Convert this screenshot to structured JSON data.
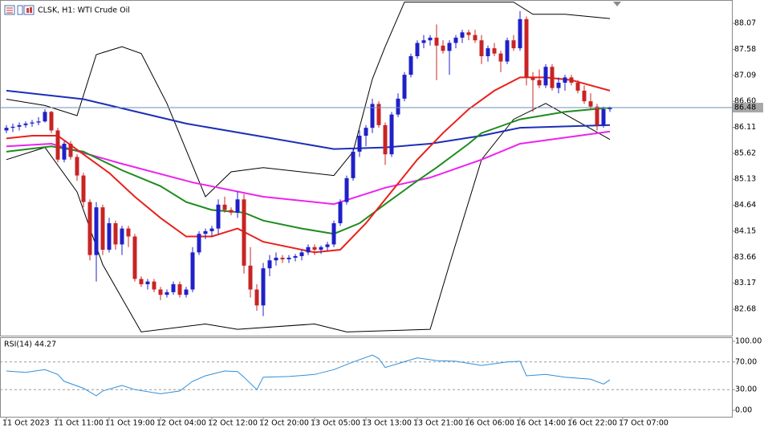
{
  "chart_data": {
    "type": "candlestick",
    "title": "CLSK, H1:  WTI Crude Oil",
    "xlim": [
      -1,
      113
    ],
    "xticks": [
      {
        "value": 0,
        "label": "11 Oct 2023"
      },
      {
        "value": 8,
        "label": "11 Oct 11:00"
      },
      {
        "value": 16,
        "label": "11 Oct 19:00"
      },
      {
        "value": 24,
        "label": "12 Oct 04:00"
      },
      {
        "value": 32,
        "label": "12 Oct 12:00"
      },
      {
        "value": 40,
        "label": "12 Oct 20:00"
      },
      {
        "value": 48,
        "label": "13 Oct 05:00"
      },
      {
        "value": 56,
        "label": "13 Oct 13:00"
      },
      {
        "value": 64,
        "label": "13 Oct 21:00"
      },
      {
        "value": 72,
        "label": "16 Oct 06:00"
      },
      {
        "value": 80,
        "label": "16 Oct 14:00"
      },
      {
        "value": 88,
        "label": "16 Oct 22:00"
      },
      {
        "value": 96,
        "label": "17 Oct 07:00"
      }
    ],
    "ylim": [
      82.18,
      88.51
    ],
    "yticks": [
      88.07,
      87.58,
      87.09,
      {
        "value": 86.6,
        "label": "86.60"
      },
      86.11,
      85.62,
      85.13,
      84.64,
      84.15,
      83.66,
      83.17,
      82.68
    ],
    "last_price": 86.48,
    "last_price_color": "#6f8fb4",
    "candles": {
      "up_color": "#2020c8",
      "down_color": "#c82424",
      "ohlc": [
        [
          86.05,
          86.15,
          86.0,
          86.1
        ],
        [
          86.1,
          86.18,
          86.02,
          86.12
        ],
        [
          86.12,
          86.2,
          86.05,
          86.15
        ],
        [
          86.15,
          86.22,
          86.1,
          86.18
        ],
        [
          86.18,
          86.25,
          86.12,
          86.2
        ],
        [
          86.2,
          86.3,
          86.15,
          86.22
        ],
        [
          86.22,
          86.45,
          86.2,
          86.4
        ],
        [
          86.4,
          86.42,
          86.0,
          86.05
        ],
        [
          86.05,
          86.1,
          85.45,
          85.5
        ],
        [
          85.5,
          85.85,
          85.45,
          85.8
        ],
        [
          85.8,
          85.85,
          85.5,
          85.55
        ],
        [
          85.55,
          85.6,
          85.1,
          85.2
        ],
        [
          85.2,
          85.25,
          84.6,
          84.7
        ],
        [
          84.7,
          84.75,
          83.6,
          83.7
        ],
        [
          83.7,
          84.7,
          83.2,
          84.6
        ],
        [
          84.6,
          84.65,
          83.7,
          83.8
        ],
        [
          83.8,
          84.4,
          83.75,
          84.3
        ],
        [
          84.3,
          84.35,
          83.8,
          83.9
        ],
        [
          83.9,
          84.25,
          83.7,
          84.2
        ],
        [
          84.2,
          84.25,
          83.85,
          84.05
        ],
        [
          84.05,
          84.1,
          83.2,
          83.25
        ],
        [
          83.25,
          83.3,
          83.1,
          83.15
        ],
        [
          83.15,
          83.25,
          83.05,
          83.2
        ],
        [
          83.2,
          83.25,
          83.0,
          83.05
        ],
        [
          83.05,
          83.1,
          82.85,
          82.95
        ],
        [
          82.95,
          83.05,
          82.9,
          83.0
        ],
        [
          83.0,
          83.2,
          82.95,
          83.15
        ],
        [
          83.15,
          83.2,
          82.9,
          82.95
        ],
        [
          82.95,
          83.1,
          82.9,
          83.05
        ],
        [
          83.05,
          83.85,
          83.0,
          83.75
        ],
        [
          83.75,
          84.15,
          83.7,
          84.1
        ],
        [
          84.1,
          84.2,
          84.0,
          84.15
        ],
        [
          84.15,
          84.25,
          84.05,
          84.2
        ],
        [
          84.2,
          84.75,
          84.1,
          84.65
        ],
        [
          84.65,
          84.8,
          84.5,
          84.55
        ],
        [
          84.55,
          84.6,
          84.45,
          84.5
        ],
        [
          84.5,
          84.9,
          84.4,
          84.75
        ],
        [
          84.75,
          84.85,
          83.35,
          83.5
        ],
        [
          83.5,
          83.85,
          82.9,
          83.05
        ],
        [
          83.05,
          83.15,
          82.65,
          82.75
        ],
        [
          82.75,
          83.55,
          82.55,
          83.45
        ],
        [
          83.45,
          83.7,
          83.3,
          83.6
        ],
        [
          83.6,
          83.75,
          83.5,
          83.65
        ],
        [
          83.65,
          83.7,
          83.55,
          83.62
        ],
        [
          83.62,
          83.7,
          83.55,
          83.65
        ],
        [
          83.65,
          83.72,
          83.58,
          83.68
        ],
        [
          83.68,
          83.8,
          83.6,
          83.75
        ],
        [
          83.75,
          83.9,
          83.7,
          83.85
        ],
        [
          83.85,
          83.9,
          83.7,
          83.8
        ],
        [
          83.8,
          83.88,
          83.72,
          83.85
        ],
        [
          83.85,
          83.95,
          83.78,
          83.9
        ],
        [
          83.9,
          84.35,
          83.85,
          84.3
        ],
        [
          84.3,
          84.75,
          84.25,
          84.7
        ],
        [
          84.7,
          85.2,
          84.65,
          85.15
        ],
        [
          85.15,
          85.7,
          85.1,
          85.65
        ],
        [
          85.65,
          86.05,
          85.55,
          85.95
        ],
        [
          85.95,
          86.15,
          85.75,
          86.1
        ],
        [
          86.1,
          86.65,
          86.0,
          86.55
        ],
        [
          86.55,
          86.6,
          86.1,
          86.15
        ],
        [
          86.15,
          86.2,
          85.4,
          85.6
        ],
        [
          85.6,
          86.4,
          85.55,
          86.35
        ],
        [
          86.35,
          86.75,
          86.3,
          86.65
        ],
        [
          86.65,
          87.15,
          86.6,
          87.1
        ],
        [
          87.1,
          87.5,
          87.05,
          87.45
        ],
        [
          87.45,
          87.75,
          87.4,
          87.7
        ],
        [
          87.7,
          87.85,
          87.6,
          87.75
        ],
        [
          87.75,
          87.85,
          87.65,
          87.8
        ],
        [
          87.8,
          88.05,
          87.0,
          87.65
        ],
        [
          87.65,
          87.75,
          87.5,
          87.55
        ],
        [
          87.55,
          87.75,
          87.1,
          87.7
        ],
        [
          87.7,
          87.85,
          87.6,
          87.8
        ],
        [
          87.8,
          87.95,
          87.7,
          87.9
        ],
        [
          87.9,
          87.95,
          87.75,
          87.85
        ],
        [
          87.85,
          87.95,
          87.7,
          87.75
        ],
        [
          87.75,
          87.85,
          87.3,
          87.45
        ],
        [
          87.45,
          87.65,
          87.35,
          87.6
        ],
        [
          87.6,
          87.7,
          87.45,
          87.5
        ],
        [
          87.5,
          87.55,
          87.15,
          87.35
        ],
        [
          87.35,
          87.8,
          87.3,
          87.75
        ],
        [
          87.75,
          87.85,
          87.55,
          87.6
        ],
        [
          87.6,
          88.3,
          87.55,
          88.15
        ],
        [
          88.15,
          88.2,
          86.9,
          87.05
        ],
        [
          87.05,
          87.15,
          86.4,
          87.0
        ],
        [
          87.0,
          87.2,
          86.85,
          86.9
        ],
        [
          86.9,
          87.3,
          86.85,
          87.25
        ],
        [
          87.25,
          87.3,
          86.8,
          86.85
        ],
        [
          86.85,
          87.05,
          86.75,
          86.95
        ],
        [
          86.95,
          87.1,
          86.8,
          87.05
        ],
        [
          87.05,
          87.1,
          86.9,
          86.95
        ],
        [
          86.95,
          87.0,
          86.75,
          86.8
        ],
        [
          86.8,
          86.9,
          86.55,
          86.6
        ],
        [
          86.6,
          86.75,
          86.45,
          86.5
        ],
        [
          86.5,
          86.55,
          86.05,
          86.15
        ],
        [
          86.15,
          86.5,
          86.1,
          86.45
        ],
        [
          86.45,
          86.5,
          86.4,
          86.48
        ]
      ]
    },
    "lines": [
      {
        "color": "#000000",
        "x": [
          0,
          6,
          11,
          14,
          18,
          21,
          25,
          31,
          35,
          40,
          51,
          54,
          57,
          59,
          62,
          79,
          82,
          87,
          94
        ],
        "values": [
          86.64,
          86.52,
          86.33,
          87.48,
          87.63,
          87.5,
          86.56,
          84.8,
          85.27,
          85.35,
          85.2,
          85.65,
          87.02,
          87.63,
          88.47,
          88.47,
          88.24,
          88.24,
          88.16
        ]
      },
      {
        "color": "#000000",
        "x": [
          0,
          6,
          11,
          15,
          21,
          31,
          36,
          48,
          53,
          66,
          69,
          74,
          79,
          84,
          94
        ],
        "values": [
          85.5,
          85.73,
          84.89,
          83.52,
          82.25,
          82.4,
          82.3,
          82.4,
          82.25,
          82.3,
          83.52,
          85.5,
          86.26,
          86.56,
          85.88
        ]
      },
      {
        "color": "#1c2fb8",
        "x": [
          0,
          12,
          28,
          40,
          51,
          59,
          66,
          74,
          80,
          94
        ],
        "values": [
          86.8,
          86.64,
          86.18,
          85.93,
          85.7,
          85.73,
          85.8,
          85.95,
          86.1,
          86.15
        ]
      },
      {
        "color": "#ee22ee",
        "x": [
          0,
          7,
          18,
          29,
          40,
          51,
          59,
          66,
          74,
          80,
          94
        ],
        "values": [
          85.75,
          85.8,
          85.42,
          85.07,
          84.8,
          84.66,
          84.97,
          85.16,
          85.5,
          85.8,
          86.03
        ]
      },
      {
        "color": "#1e8c1e",
        "x": [
          0,
          7,
          12,
          18,
          24,
          28,
          32,
          37,
          40,
          46,
          51,
          55,
          59,
          64,
          67,
          72,
          74,
          80,
          87,
          94
        ],
        "values": [
          85.65,
          85.75,
          85.65,
          85.3,
          85.0,
          84.7,
          84.55,
          84.5,
          84.35,
          84.2,
          84.1,
          84.3,
          84.66,
          85.1,
          85.35,
          85.8,
          86.0,
          86.26,
          86.4,
          86.48
        ]
      },
      {
        "color": "#e8211c",
        "x": [
          0,
          4,
          8,
          12,
          16,
          20,
          24,
          28,
          32,
          36,
          40,
          44,
          48,
          52,
          56,
          60,
          64,
          68,
          72,
          76,
          80,
          84,
          88,
          94
        ],
        "values": [
          85.9,
          85.95,
          85.95,
          85.6,
          85.25,
          84.8,
          84.4,
          84.05,
          84.05,
          84.2,
          83.95,
          83.85,
          83.75,
          83.8,
          84.3,
          84.9,
          85.5,
          86.0,
          86.45,
          86.8,
          87.05,
          87.05,
          87.0,
          86.8
        ]
      }
    ],
    "rsi": {
      "title": "RSI(14) 44.27",
      "color": "#2f8fd8",
      "ylim": [
        0,
        100
      ],
      "yticks": [
        {
          "value": 100,
          "label": "100.00"
        },
        {
          "value": 70,
          "label": "70.00"
        },
        {
          "value": 30,
          "label": "30.00"
        },
        {
          "value": 0,
          "label": "0.00"
        }
      ],
      "levels": [
        70,
        30
      ],
      "x": [
        0,
        3,
        6,
        8,
        9,
        12,
        14,
        15,
        18,
        20,
        24,
        27,
        29,
        31,
        34,
        36,
        37,
        39,
        40,
        44,
        48,
        51,
        54,
        57,
        58,
        59,
        64,
        67,
        70,
        74,
        78,
        80,
        81,
        84,
        87,
        91,
        93,
        94
      ],
      "values": [
        57,
        55,
        59,
        52,
        42,
        32,
        21,
        28,
        36,
        30,
        24,
        28,
        42,
        50,
        57,
        56,
        48,
        30,
        48,
        49,
        52,
        59,
        70,
        80,
        75,
        62,
        76,
        72,
        71,
        65,
        70,
        71,
        50,
        52,
        48,
        45,
        38,
        44.27
      ]
    }
  }
}
